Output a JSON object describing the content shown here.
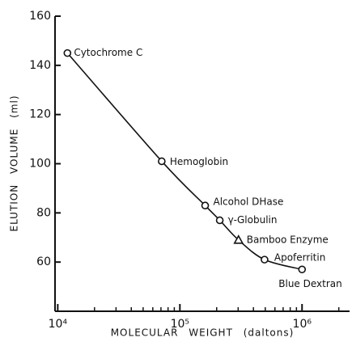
{
  "chart_data": {
    "type": "scatter",
    "xlabel": "MOLECULAR WEIGHT (daltons)",
    "ylabel": "ELUTION VOLUME (ml)",
    "xscale": "log",
    "xlim": [
      9500,
      2450000
    ],
    "ylim": [
      40,
      160
    ],
    "xticks": [
      {
        "value": 10000,
        "label": "10⁴"
      },
      {
        "value": 100000,
        "label": "10⁵"
      },
      {
        "value": 1000000,
        "label": "10⁶"
      }
    ],
    "xminor_ticks": [
      20000,
      30000,
      40000,
      50000,
      60000,
      70000,
      80000,
      90000,
      200000,
      300000,
      400000,
      500000,
      600000,
      700000,
      800000,
      900000,
      2000000
    ],
    "yticks": [
      60,
      80,
      100,
      120,
      140,
      160
    ],
    "color": "#111111",
    "x": [
      12000,
      71000,
      161000,
      212000,
      302000,
      493000,
      1000000
    ],
    "values": [
      145,
      101,
      83,
      77,
      69,
      61,
      57
    ],
    "labels": [
      "Cytochrome C",
      "Hemoglobin",
      "Alcohol DHase",
      "γ-Globulin",
      "Bamboo Enzyme",
      "Apoferritin",
      "Blue Dextran"
    ],
    "markers": [
      "circle",
      "circle",
      "circle",
      "circle",
      "triangle",
      "circle",
      "circle"
    ]
  }
}
